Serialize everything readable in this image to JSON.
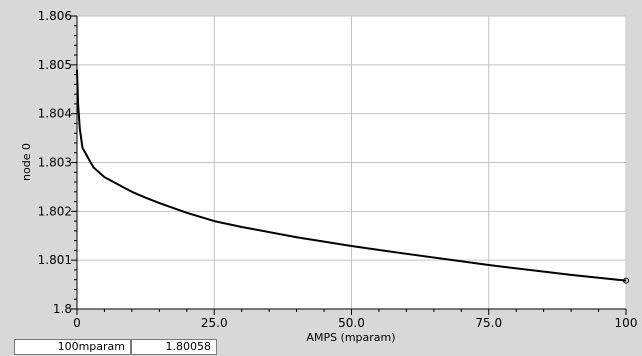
{
  "chart_data": {
    "type": "line",
    "title": "",
    "xlabel": "AMPS (mparam)",
    "ylabel": "node 0",
    "xlim": [
      0,
      100
    ],
    "ylim": [
      1.8,
      1.806
    ],
    "x_ticks": [
      0,
      25,
      50,
      75,
      100
    ],
    "x_tick_labels": [
      "0",
      "25.0",
      "50.0",
      "75.0",
      "100"
    ],
    "y_ticks": [
      1.8,
      1.801,
      1.802,
      1.803,
      1.804,
      1.805,
      1.806
    ],
    "y_tick_labels": [
      "1.8",
      "1.801",
      "1.802",
      "1.803",
      "1.804",
      "1.805",
      "1.806"
    ],
    "grid": true,
    "series": [
      {
        "x": [
          0,
          0.2,
          0.5,
          1,
          2,
          3,
          4,
          5,
          7.5,
          10,
          12.5,
          15,
          20,
          25,
          30,
          40,
          50,
          60,
          75,
          90,
          100
        ],
        "y": [
          1.8049,
          1.8042,
          1.8037,
          1.8033,
          1.8031,
          1.8029,
          1.8028,
          1.8027,
          1.80255,
          1.8024,
          1.80228,
          1.80217,
          1.80197,
          1.8018,
          1.80168,
          1.80147,
          1.80129,
          1.80113,
          1.8009,
          1.8007,
          1.80058
        ],
        "color": "#000000"
      }
    ]
  },
  "readout": {
    "x_value": "100mparam",
    "y_value": "1.80058"
  },
  "colors": {
    "background": "#d8d8d8",
    "plot_area": "#ffffff",
    "grid": "#c4c4c4",
    "line": "#000000"
  }
}
